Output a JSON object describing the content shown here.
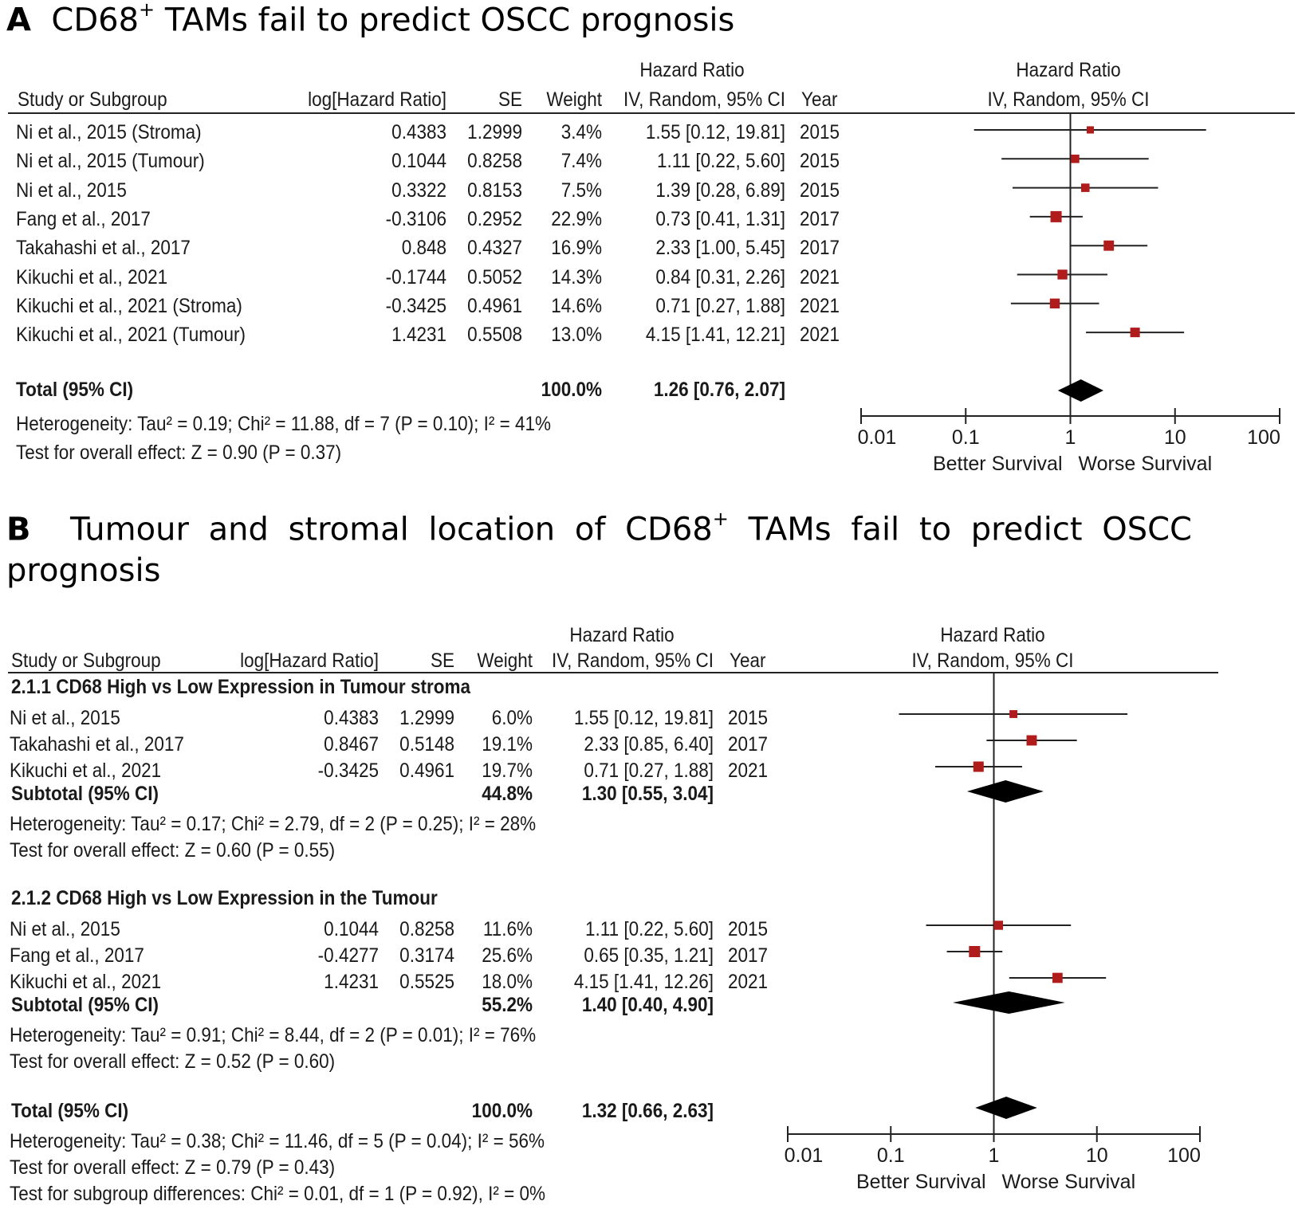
{
  "panelA": {
    "letter": "A",
    "title_pre": "CD68",
    "title_sup": "+",
    "title_post": " TAMs fail to predict OSCC prognosis",
    "headers": {
      "study": "Study or Subgroup",
      "loghr": "log[Hazard Ratio]",
      "se": "SE",
      "weight": "Weight",
      "hr_top": "Hazard Ratio",
      "hr_bottom": "IV, Random, 95% CI",
      "year": "Year",
      "plot_top": "Hazard Ratio",
      "plot_bottom": "IV, Random, 95% CI"
    },
    "rows": [
      {
        "study": "Ni et al., 2015 (Stroma)",
        "loghr": "0.4383",
        "se": "1.2999",
        "weight": "3.4%",
        "ci": "1.55 [0.12, 19.81]",
        "year": "2015"
      },
      {
        "study": "Ni et al., 2015 (Tumour)",
        "loghr": "0.1044",
        "se": "0.8258",
        "weight": "7.4%",
        "ci": "1.11 [0.22, 5.60]",
        "year": "2015"
      },
      {
        "study": "Ni et al., 2015",
        "loghr": "0.3322",
        "se": "0.8153",
        "weight": "7.5%",
        "ci": "1.39 [0.28, 6.89]",
        "year": "2015"
      },
      {
        "study": "Fang et al., 2017",
        "loghr": "-0.3106",
        "se": "0.2952",
        "weight": "22.9%",
        "ci": "0.73 [0.41, 1.31]",
        "year": "2017"
      },
      {
        "study": "Takahashi et al., 2017",
        "loghr": "0.848",
        "se": "0.4327",
        "weight": "16.9%",
        "ci": "2.33 [1.00, 5.45]",
        "year": "2017"
      },
      {
        "study": "Kikuchi et al., 2021",
        "loghr": "-0.1744",
        "se": "0.5052",
        "weight": "14.3%",
        "ci": "0.84 [0.31, 2.26]",
        "year": "2021"
      },
      {
        "study": "Kikuchi et al., 2021 (Stroma)",
        "loghr": "-0.3425",
        "se": "0.4961",
        "weight": "14.6%",
        "ci": "0.71 [0.27, 1.88]",
        "year": "2021"
      },
      {
        "study": "Kikuchi et al., 2021 (Tumour)",
        "loghr": "1.4231",
        "se": "0.5508",
        "weight": "13.0%",
        "ci": "4.15 [1.41, 12.21]",
        "year": "2021"
      }
    ],
    "total": {
      "label": "Total (95% CI)",
      "weight": "100.0%",
      "ci": "1.26 [0.76, 2.07]"
    },
    "heterogeneity": "Heterogeneity: Tau² = 0.19; Chi² = 11.88, df = 7 (P = 0.10); I² = 41%",
    "overall": "Test for overall effect: Z = 0.90 (P = 0.37)"
  },
  "panelB": {
    "letter": "B",
    "title_pre": "Tumour and stromal location of CD68",
    "title_sup": "+",
    "title_post": " TAMs fail to predict OSCC",
    "title_line2": "prognosis",
    "headers": {
      "study": "Study or Subgroup",
      "loghr": "log[Hazard Ratio]",
      "se": "SE",
      "weight": "Weight",
      "hr_top": "Hazard Ratio",
      "hr_bottom": "IV, Random, 95% CI",
      "year": "Year",
      "plot_top": "Hazard Ratio",
      "plot_bottom": "IV, Random, 95% CI"
    },
    "groups": [
      {
        "heading": "2.1.1 CD68 High vs Low Expression in Tumour stroma",
        "rows": [
          {
            "study": "Ni et al., 2015",
            "loghr": "0.4383",
            "se": "1.2999",
            "weight": "6.0%",
            "ci": "1.55 [0.12, 19.81]",
            "year": "2015"
          },
          {
            "study": "Takahashi et al., 2017",
            "loghr": "0.8467",
            "se": "0.5148",
            "weight": "19.1%",
            "ci": "2.33 [0.85, 6.40]",
            "year": "2017"
          },
          {
            "study": "Kikuchi et al., 2021",
            "loghr": "-0.3425",
            "se": "0.4961",
            "weight": "19.7%",
            "ci": "0.71 [0.27, 1.88]",
            "year": "2021"
          }
        ],
        "subtotal": {
          "label": "Subtotal (95% CI)",
          "weight": "44.8%",
          "ci": "1.30 [0.55, 3.04]"
        },
        "heterogeneity": "Heterogeneity: Tau² = 0.17; Chi² = 2.79, df = 2 (P = 0.25); I² = 28%",
        "overall": "Test for overall effect: Z = 0.60 (P = 0.55)"
      },
      {
        "heading": "2.1.2 CD68 High vs Low Expression in the Tumour",
        "rows": [
          {
            "study": "Ni et al., 2015",
            "loghr": "0.1044",
            "se": "0.8258",
            "weight": "11.6%",
            "ci": "1.11 [0.22, 5.60]",
            "year": "2015"
          },
          {
            "study": "Fang et al., 2017",
            "loghr": "-0.4277",
            "se": "0.3174",
            "weight": "25.6%",
            "ci": "0.65 [0.35, 1.21]",
            "year": "2017"
          },
          {
            "study": "Kikuchi et al., 2021",
            "loghr": "1.4231",
            "se": "0.5525",
            "weight": "18.0%",
            "ci": "4.15 [1.41, 12.26]",
            "year": "2021"
          }
        ],
        "subtotal": {
          "label": "Subtotal (95% CI)",
          "weight": "55.2%",
          "ci": "1.40 [0.40, 4.90]"
        },
        "heterogeneity": "Heterogeneity: Tau² = 0.91; Chi² = 8.44, df = 2 (P = 0.01); I² = 76%",
        "overall": "Test for overall effect: Z = 0.52 (P = 0.60)"
      }
    ],
    "total": {
      "label": "Total (95% CI)",
      "weight": "100.0%",
      "ci": "1.32 [0.66, 2.63]"
    },
    "heterogeneity": "Heterogeneity: Tau² = 0.38; Chi² = 11.46, df = 5 (P = 0.04); I² = 56%",
    "overall": "Test for overall effect: Z = 0.79 (P = 0.43)",
    "subgroup": "Test for subgroup differences: Chi² = 0.01, df = 1 (P = 0.92), I² = 0%"
  },
  "colors": {
    "marker": "#b01c1c",
    "line": "#222222",
    "diamond": "#000000"
  },
  "chart_data": [
    {
      "type": "forest",
      "title": "CD68+ TAMs fail to predict OSCC prognosis",
      "xscale": "log",
      "xlim": [
        0.01,
        100
      ],
      "ticks": [
        "0.01",
        "0.1",
        "1",
        "10",
        "100"
      ],
      "xlabel_left": "Better Survival",
      "xlabel_right": "Worse Survival",
      "studies": [
        {
          "name": "Ni et al., 2015 (Stroma)",
          "hr": 1.55,
          "lo": 0.12,
          "hi": 19.81,
          "weight": 3.4
        },
        {
          "name": "Ni et al., 2015 (Tumour)",
          "hr": 1.11,
          "lo": 0.22,
          "hi": 5.6,
          "weight": 7.4
        },
        {
          "name": "Ni et al., 2015",
          "hr": 1.39,
          "lo": 0.28,
          "hi": 6.89,
          "weight": 7.5
        },
        {
          "name": "Fang et al., 2017",
          "hr": 0.73,
          "lo": 0.41,
          "hi": 1.31,
          "weight": 22.9
        },
        {
          "name": "Takahashi et al., 2017",
          "hr": 2.33,
          "lo": 1.0,
          "hi": 5.45,
          "weight": 16.9
        },
        {
          "name": "Kikuchi et al., 2021",
          "hr": 0.84,
          "lo": 0.31,
          "hi": 2.26,
          "weight": 14.3
        },
        {
          "name": "Kikuchi et al., 2021 (Stroma)",
          "hr": 0.71,
          "lo": 0.27,
          "hi": 1.88,
          "weight": 14.6
        },
        {
          "name": "Kikuchi et al., 2021 (Tumour)",
          "hr": 4.15,
          "lo": 1.41,
          "hi": 12.21,
          "weight": 13.0
        }
      ],
      "pooled": {
        "hr": 1.26,
        "lo": 0.76,
        "hi": 2.07
      }
    },
    {
      "type": "forest",
      "title": "Tumour and stromal location of CD68+ TAMs fail to predict OSCC prognosis",
      "xscale": "log",
      "xlim": [
        0.01,
        100
      ],
      "ticks": [
        "0.01",
        "0.1",
        "1",
        "10",
        "100"
      ],
      "xlabel_left": "Better Survival",
      "xlabel_right": "Worse Survival",
      "studies": [
        {
          "name": "Ni et al., 2015",
          "group": "2.1.1",
          "hr": 1.55,
          "lo": 0.12,
          "hi": 19.81,
          "weight": 6.0
        },
        {
          "name": "Takahashi et al., 2017",
          "group": "2.1.1",
          "hr": 2.33,
          "lo": 0.85,
          "hi": 6.4,
          "weight": 19.1
        },
        {
          "name": "Kikuchi et al., 2021",
          "group": "2.1.1",
          "hr": 0.71,
          "lo": 0.27,
          "hi": 1.88,
          "weight": 19.7
        },
        {
          "name": "Ni et al., 2015",
          "group": "2.1.2",
          "hr": 1.11,
          "lo": 0.22,
          "hi": 5.6,
          "weight": 11.6
        },
        {
          "name": "Fang et al., 2017",
          "group": "2.1.2",
          "hr": 0.65,
          "lo": 0.35,
          "hi": 1.21,
          "weight": 25.6
        },
        {
          "name": "Kikuchi et al., 2021",
          "group": "2.1.2",
          "hr": 4.15,
          "lo": 1.41,
          "hi": 12.26,
          "weight": 18.0
        }
      ],
      "subtotals": [
        {
          "group": "2.1.1",
          "hr": 1.3,
          "lo": 0.55,
          "hi": 3.04
        },
        {
          "group": "2.1.2",
          "hr": 1.4,
          "lo": 0.4,
          "hi": 4.9
        }
      ],
      "pooled": {
        "hr": 1.32,
        "lo": 0.66,
        "hi": 2.63
      }
    }
  ]
}
